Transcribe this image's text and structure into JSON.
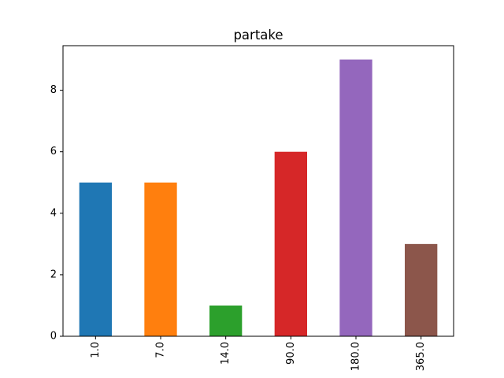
{
  "chart_data": {
    "type": "bar",
    "title": "partake",
    "xlabel": "",
    "ylabel": "",
    "categories": [
      "1.0",
      "7.0",
      "14.0",
      "90.0",
      "180.0",
      "365.0"
    ],
    "values": [
      5,
      5,
      1,
      6,
      9,
      3
    ],
    "colors": [
      "#1f77b4",
      "#ff7f0e",
      "#2ca02c",
      "#d62728",
      "#9467bd",
      "#8c564b"
    ],
    "ylim": [
      0,
      9.45
    ],
    "yticks": [
      0,
      2,
      4,
      6,
      8
    ],
    "grid": false,
    "legend": "none"
  }
}
